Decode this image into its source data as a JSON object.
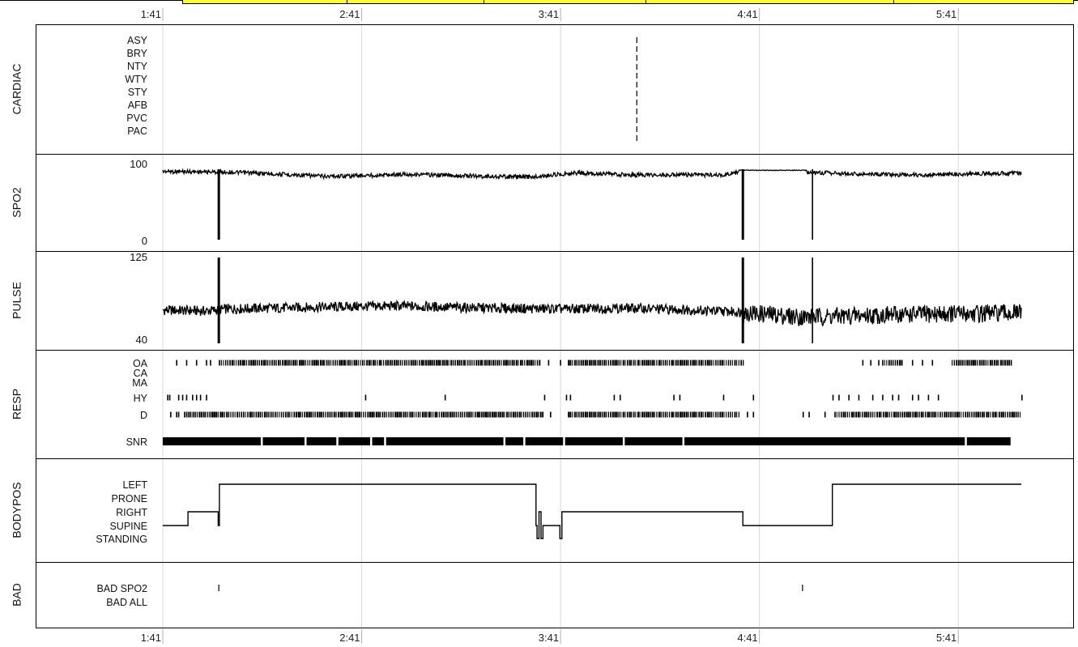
{
  "chart_data": {
    "type": "line",
    "time_axis": {
      "ticks": [
        "1:41",
        "2:41",
        "3:41",
        "4:41",
        "5:41"
      ],
      "start_hours": 1.6833,
      "end_hours": 6.0,
      "range_hours": [
        1.6833,
        6.0
      ],
      "grid": true,
      "gridline_color": "#d8d8d8"
    },
    "panels": [
      {
        "id": "cardiac",
        "title": "CARDIAC",
        "kind": "events",
        "rows": [
          "ASY",
          "BRY",
          "NTY",
          "WTY",
          "STY",
          "AFB",
          "PVC",
          "PAC"
        ],
        "events": [
          {
            "time_hours": 4.0667,
            "rows": [
              "ASY",
              "BRY",
              "NTY",
              "WTY",
              "STY",
              "AFB",
              "PVC",
              "PAC"
            ],
            "style": "dashed"
          }
        ]
      },
      {
        "id": "spo2",
        "title": "SPO2",
        "kind": "line",
        "ylim": [
          0,
          100
        ],
        "y_tick_labels": [
          "100",
          "0"
        ],
        "series": [
          {
            "baseline": [
              [
                1.683,
                100
              ],
              [
                2.0,
                99
              ],
              [
                2.2,
                97
              ],
              [
                2.5,
                93
              ],
              [
                2.7,
                94
              ],
              [
                2.9,
                96
              ],
              [
                3.3,
                93
              ],
              [
                3.55,
                92
              ],
              [
                3.75,
                98
              ],
              [
                4.0,
                95
              ],
              [
                4.5,
                95
              ],
              [
                4.58,
                99
              ],
              [
                4.9,
                99
              ],
              [
                5.2,
                96
              ],
              [
                5.5,
                95
              ],
              [
                6.0,
                98
              ]
            ],
            "noise_amplitude": 6,
            "drops": [
              {
                "time_hours": 1.965,
                "value": 0
              },
              {
                "time_hours": 4.6,
                "value": 0
              },
              {
                "time_hours": 4.95,
                "value": 0
              }
            ]
          }
        ]
      },
      {
        "id": "pulse",
        "title": "PULSE",
        "kind": "line",
        "ylim": [
          40,
          125
        ],
        "y_tick_labels": [
          "125",
          "40"
        ],
        "series": [
          {
            "baseline": [
              [
                1.683,
                73
              ],
              [
                1.9,
                72
              ],
              [
                2.0,
                74
              ],
              [
                2.5,
                76
              ],
              [
                2.85,
                77
              ],
              [
                3.3,
                75
              ],
              [
                3.7,
                74
              ],
              [
                4.0,
                75
              ],
              [
                4.35,
                73
              ],
              [
                4.58,
                71
              ],
              [
                4.9,
                66
              ],
              [
                5.5,
                69
              ],
              [
                6.0,
                70
              ]
            ],
            "noise_amplitude": 5,
            "spikes": [
              {
                "time_hours": 1.965,
                "low": 40,
                "high": 125
              },
              {
                "time_hours": 4.6,
                "low": 40,
                "high": 125
              },
              {
                "time_hours": 4.95,
                "low": 40,
                "high": 125
              }
            ]
          }
        ]
      },
      {
        "id": "resp",
        "title": "RESP",
        "kind": "events",
        "rows": [
          "OA",
          "CA",
          "MA",
          "HY",
          "D",
          "SNR"
        ],
        "event_rows": [
          {
            "label": "OA",
            "dense_segments": [
              [
                1.965,
                3.58
              ],
              [
                3.72,
                4.6
              ],
              [
                5.3,
                5.4
              ],
              [
                5.65,
                5.95
              ]
            ],
            "isolated": [
              1.75,
              1.8,
              1.85,
              1.9,
              1.92,
              3.62,
              3.68,
              5.2,
              5.24,
              5.28,
              5.45,
              5.5,
              5.55
            ]
          },
          {
            "label": "HY",
            "dense_segments": [],
            "isolated": [
              1.705,
              1.715,
              1.76,
              1.78,
              1.8,
              1.83,
              1.85,
              1.87,
              1.9,
              2.7,
              3.1,
              3.6,
              3.71,
              3.73,
              3.95,
              3.98,
              4.25,
              4.28,
              4.5,
              4.65,
              5.05,
              5.08,
              5.13,
              5.18,
              5.25,
              5.3,
              5.35,
              5.38,
              5.45,
              5.48,
              5.53,
              5.58,
              6.0
            ]
          },
          {
            "label": "D",
            "dense_segments": [
              [
                1.79,
                3.6
              ],
              [
                3.72,
                4.58
              ],
              [
                5.06,
                6.0
              ]
            ],
            "isolated": [
              1.72,
              1.75,
              1.76,
              3.63,
              4.62,
              4.65,
              4.9,
              4.93,
              5.01
            ]
          },
          {
            "label": "SNR",
            "dense_segments": [
              [
                1.683,
                5.95
              ]
            ],
            "gaps": [
              2.18,
              2.4,
              2.56,
              2.73,
              2.8,
              3.4,
              3.5,
              3.7,
              4.0,
              4.3,
              5.72
            ]
          }
        ]
      },
      {
        "id": "bodypos",
        "title": "BODYPOS",
        "kind": "step",
        "rows": [
          "LEFT",
          "PRONE",
          "RIGHT",
          "SUPINE",
          "STANDING"
        ],
        "steps": [
          [
            "1.683",
            "SUPINE"
          ],
          [
            "1.81",
            "RIGHT"
          ],
          [
            "1.962",
            "SUPINE"
          ],
          [
            "1.968",
            "LEFT"
          ],
          [
            "3.55",
            "LEFT"
          ],
          [
            "3.56",
            "SUPINE"
          ],
          [
            "3.565",
            "STANDING"
          ],
          [
            "3.575",
            "RIGHT"
          ],
          [
            "3.585",
            "STANDING"
          ],
          [
            "3.595",
            "SUPINE"
          ],
          [
            "3.68",
            "STANDING"
          ],
          [
            "3.69",
            "RIGHT"
          ],
          [
            "4.6",
            "SUPINE"
          ],
          [
            "5.05",
            "LEFT"
          ],
          [
            "6.0",
            "LEFT"
          ]
        ]
      },
      {
        "id": "bad",
        "title": "BAD",
        "kind": "events",
        "rows": [
          "BAD SPO2",
          "BAD ALL"
        ],
        "events": [
          {
            "time_hours": 1.965,
            "rows": [
              "BAD SPO2"
            ]
          },
          {
            "time_hours": 4.9,
            "rows": [
              "BAD SPO2"
            ]
          }
        ]
      }
    ],
    "line_color": "#000000"
  }
}
